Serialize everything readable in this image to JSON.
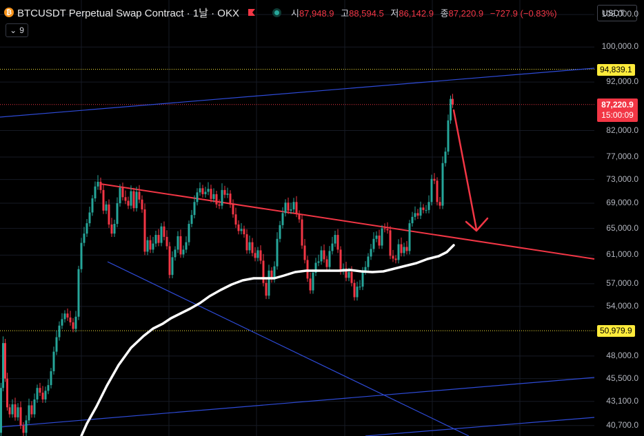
{
  "header": {
    "coin_icon": "bitcoin-icon",
    "title": "BTCUSDT Perpetual Swap Contract · 1날 · OKX",
    "ohlc": [
      {
        "label": "시",
        "value": "87,948.9"
      },
      {
        "label": "고",
        "value": "88,594.5"
      },
      {
        "label": "저",
        "value": "86,142.9"
      },
      {
        "label": "종",
        "value": "87,220.9"
      }
    ],
    "change": "−727.9 (−0.83%)",
    "indicator_count": "9",
    "currency": "USDT"
  },
  "colors": {
    "up": "#26a69a",
    "down": "#f23645",
    "trendline": "#f23645",
    "channel": "#2e4bd8",
    "moving_average": "#ffffff",
    "highlight": "#ffeb3b"
  },
  "chart_data": {
    "type": "candlestick",
    "scale": "log",
    "ylim": [
      39700,
      111800
    ],
    "y_ticks": [
      {
        "value": 108000,
        "label": "108,000.0"
      },
      {
        "value": 100000,
        "label": "100,000.0"
      },
      {
        "value": 92000,
        "label": "92,000.0"
      },
      {
        "value": 82000,
        "label": "82,000.0"
      },
      {
        "value": 77000,
        "label": "77,000.0"
      },
      {
        "value": 73000,
        "label": "73,000.0"
      },
      {
        "value": 69000,
        "label": "69,000.0"
      },
      {
        "value": 65000,
        "label": "65,000.0"
      },
      {
        "value": 61000,
        "label": "61,000.0"
      },
      {
        "value": 57000,
        "label": "57,000.0"
      },
      {
        "value": 54000,
        "label": "54,000.0"
      },
      {
        "value": 48000,
        "label": "48,000.0"
      },
      {
        "value": 45500,
        "label": "45,500.0"
      },
      {
        "value": 43100,
        "label": "43,100.0"
      },
      {
        "value": 40700,
        "label": "40,700.0"
      }
    ],
    "price_levels": [
      {
        "value": 94839.1,
        "label": "94,839.1",
        "style": "dotted-yellow"
      },
      {
        "value": 50979.9,
        "label": "50,979.9",
        "style": "dotted-yellow"
      }
    ],
    "last_price": {
      "value": 87220.9,
      "label": "87,220.9",
      "countdown": "15:00:09"
    },
    "price_path": [
      [
        0,
        40000
      ],
      [
        3,
        44500
      ],
      [
        6,
        49500
      ],
      [
        9,
        45500
      ],
      [
        12,
        42500
      ],
      [
        16,
        41800
      ],
      [
        20,
        42800
      ],
      [
        24,
        41500
      ],
      [
        28,
        42500
      ],
      [
        32,
        40700
      ],
      [
        36,
        40000
      ],
      [
        40,
        41200
      ],
      [
        44,
        42700
      ],
      [
        48,
        41800
      ],
      [
        52,
        43300
      ],
      [
        56,
        44500
      ],
      [
        60,
        44000
      ],
      [
        64,
        43300
      ],
      [
        68,
        44200
      ],
      [
        72,
        44800
      ],
      [
        76,
        46300
      ],
      [
        80,
        48500
      ],
      [
        84,
        50200
      ],
      [
        88,
        51600
      ],
      [
        92,
        52400
      ],
      [
        96,
        53100
      ],
      [
        100,
        52600
      ],
      [
        104,
        52000
      ],
      [
        108,
        51200
      ],
      [
        112,
        52700
      ],
      [
        116,
        59000
      ],
      [
        120,
        62800
      ],
      [
        124,
        64200
      ],
      [
        128,
        65800
      ],
      [
        132,
        67500
      ],
      [
        136,
        69800
      ],
      [
        140,
        71800
      ],
      [
        144,
        72600
      ],
      [
        148,
        71200
      ],
      [
        152,
        67800
      ],
      [
        156,
        68800
      ],
      [
        160,
        65600
      ],
      [
        164,
        64200
      ],
      [
        168,
        65700
      ],
      [
        172,
        69000
      ],
      [
        176,
        71600
      ],
      [
        180,
        70000
      ],
      [
        184,
        69400
      ],
      [
        188,
        68600
      ],
      [
        192,
        71000
      ],
      [
        196,
        68200
      ],
      [
        200,
        70900
      ],
      [
        204,
        69600
      ],
      [
        208,
        68000
      ],
      [
        212,
        61500
      ],
      [
        216,
        63200
      ],
      [
        220,
        61800
      ],
      [
        224,
        62700
      ],
      [
        228,
        64000
      ],
      [
        232,
        62800
      ],
      [
        236,
        65300
      ],
      [
        240,
        63700
      ],
      [
        244,
        62300
      ],
      [
        248,
        58200
      ],
      [
        252,
        60700
      ],
      [
        256,
        61800
      ],
      [
        260,
        63800
      ],
      [
        264,
        61100
      ],
      [
        268,
        61800
      ],
      [
        272,
        62900
      ],
      [
        276,
        65700
      ],
      [
        280,
        67100
      ],
      [
        284,
        69200
      ],
      [
        288,
        70800
      ],
      [
        292,
        71500
      ],
      [
        296,
        70500
      ],
      [
        300,
        70900
      ],
      [
        304,
        71400
      ],
      [
        308,
        69700
      ],
      [
        312,
        70500
      ],
      [
        316,
        68800
      ],
      [
        320,
        68600
      ],
      [
        324,
        71200
      ],
      [
        328,
        70400
      ],
      [
        332,
        70600
      ],
      [
        336,
        68800
      ],
      [
        340,
        67200
      ],
      [
        344,
        65600
      ],
      [
        348,
        64600
      ],
      [
        352,
        64900
      ],
      [
        356,
        64100
      ],
      [
        360,
        61700
      ],
      [
        364,
        62900
      ],
      [
        368,
        61300
      ],
      [
        372,
        60600
      ],
      [
        376,
        61700
      ],
      [
        380,
        60200
      ],
      [
        384,
        57100
      ],
      [
        388,
        55400
      ],
      [
        392,
        58800
      ],
      [
        396,
        57600
      ],
      [
        400,
        59400
      ],
      [
        404,
        63400
      ],
      [
        408,
        65500
      ],
      [
        412,
        67400
      ],
      [
        416,
        69100
      ],
      [
        420,
        67800
      ],
      [
        424,
        68000
      ],
      [
        428,
        69200
      ],
      [
        432,
        67300
      ],
      [
        436,
        66400
      ],
      [
        440,
        62400
      ],
      [
        444,
        60300
      ],
      [
        448,
        57700
      ],
      [
        452,
        56100
      ],
      [
        456,
        58500
      ],
      [
        460,
        59900
      ],
      [
        464,
        60100
      ],
      [
        468,
        61700
      ],
      [
        472,
        60400
      ],
      [
        476,
        59300
      ],
      [
        480,
        61600
      ],
      [
        484,
        62700
      ],
      [
        488,
        64000
      ],
      [
        492,
        61800
      ],
      [
        496,
        58700
      ],
      [
        500,
        59100
      ],
      [
        504,
        57800
      ],
      [
        508,
        58600
      ],
      [
        512,
        57100
      ],
      [
        516,
        55200
      ],
      [
        520,
        56600
      ],
      [
        524,
        56600
      ],
      [
        528,
        58700
      ],
      [
        532,
        59300
      ],
      [
        536,
        60800
      ],
      [
        540,
        61900
      ],
      [
        544,
        63400
      ],
      [
        548,
        63900
      ],
      [
        552,
        62400
      ],
      [
        556,
        65000
      ],
      [
        560,
        64900
      ],
      [
        564,
        64700
      ],
      [
        568,
        60900
      ],
      [
        572,
        60500
      ],
      [
        576,
        60300
      ],
      [
        580,
        62600
      ],
      [
        584,
        61300
      ],
      [
        588,
        62200
      ],
      [
        592,
        61600
      ],
      [
        596,
        65800
      ],
      [
        600,
        66800
      ],
      [
        604,
        67400
      ],
      [
        608,
        67000
      ],
      [
        612,
        68300
      ],
      [
        616,
        67900
      ],
      [
        620,
        67900
      ],
      [
        624,
        69200
      ],
      [
        628,
        73100
      ],
      [
        632,
        72800
      ],
      [
        636,
        69200
      ],
      [
        640,
        68600
      ],
      [
        644,
        75900
      ],
      [
        648,
        78000
      ],
      [
        652,
        84000
      ],
      [
        655,
        88400
      ],
      [
        658,
        87220
      ]
    ],
    "moving_average": [
      [
        118,
        633
      ],
      [
        126,
        615
      ],
      [
        140,
        590
      ],
      [
        155,
        560
      ],
      [
        172,
        530
      ],
      [
        190,
        505
      ],
      [
        208,
        488
      ],
      [
        222,
        477
      ],
      [
        236,
        470
      ],
      [
        248,
        462
      ],
      [
        262,
        455
      ],
      [
        276,
        448
      ],
      [
        290,
        440
      ],
      [
        304,
        430
      ],
      [
        320,
        421
      ],
      [
        336,
        413
      ],
      [
        352,
        407
      ],
      [
        368,
        404
      ],
      [
        384,
        404
      ],
      [
        398,
        404
      ],
      [
        412,
        400
      ],
      [
        428,
        395
      ],
      [
        444,
        393
      ],
      [
        460,
        393
      ],
      [
        476,
        393
      ],
      [
        492,
        393
      ],
      [
        508,
        392
      ],
      [
        524,
        394
      ],
      [
        540,
        395
      ],
      [
        556,
        394
      ],
      [
        572,
        390
      ],
      [
        588,
        386
      ],
      [
        604,
        382
      ],
      [
        620,
        376
      ],
      [
        636,
        372
      ],
      [
        648,
        366
      ],
      [
        658,
        356
      ]
    ]
  }
}
